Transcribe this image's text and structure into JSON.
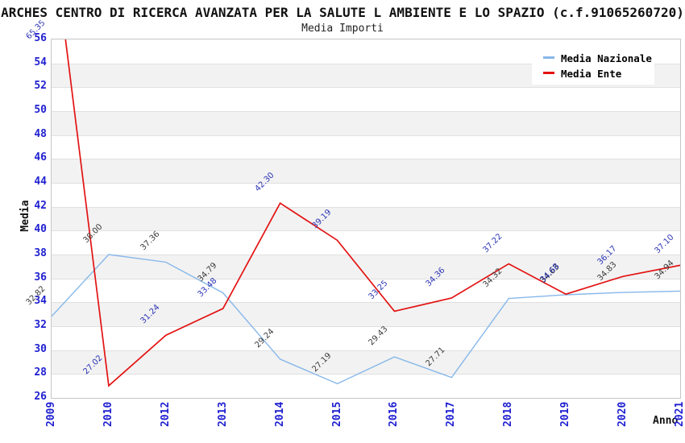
{
  "header": {
    "title": "ARCHES CENTRO DI RICERCA AVANZATA PER LA SALUTE L AMBIENTE E LO SPAZIO (c.f.91065260720)",
    "subtitle": "Media Importi"
  },
  "chart_data": {
    "type": "line",
    "categories": [
      "2009",
      "2010",
      "2012",
      "2013",
      "2014",
      "2015",
      "2016",
      "2017",
      "2018",
      "2019",
      "2020",
      "2021"
    ],
    "series": [
      {
        "name": "Media Nazionale",
        "color": "#86b7ea",
        "label_color": "#3c3c3c",
        "stroke_width": 1.4,
        "values": [
          32.82,
          38.0,
          37.36,
          34.79,
          29.24,
          27.19,
          29.43,
          27.71,
          34.32,
          34.63,
          34.83,
          34.94
        ]
      },
      {
        "name": "Media Ente",
        "color": "#e31212",
        "label_color": "#2d35b5",
        "stroke_width": 1.7,
        "values": [
          65.35,
          27.02,
          31.24,
          33.48,
          42.3,
          39.19,
          33.25,
          34.36,
          37.22,
          34.68,
          36.17,
          37.1
        ]
      }
    ],
    "title": "Media Importi",
    "xlabel": "Anno",
    "ylabel": "Media",
    "ylim": [
      26,
      56
    ],
    "ytick_step": 2,
    "grid": true,
    "stripes": true,
    "legend_position": "top-right"
  },
  "colors": {
    "tick_text": "#1f1fd1",
    "gridline": "#e0e0e0",
    "stripe": "#f2f2f2",
    "plot_border": "#c6c6c6",
    "background": "#ffffff"
  }
}
